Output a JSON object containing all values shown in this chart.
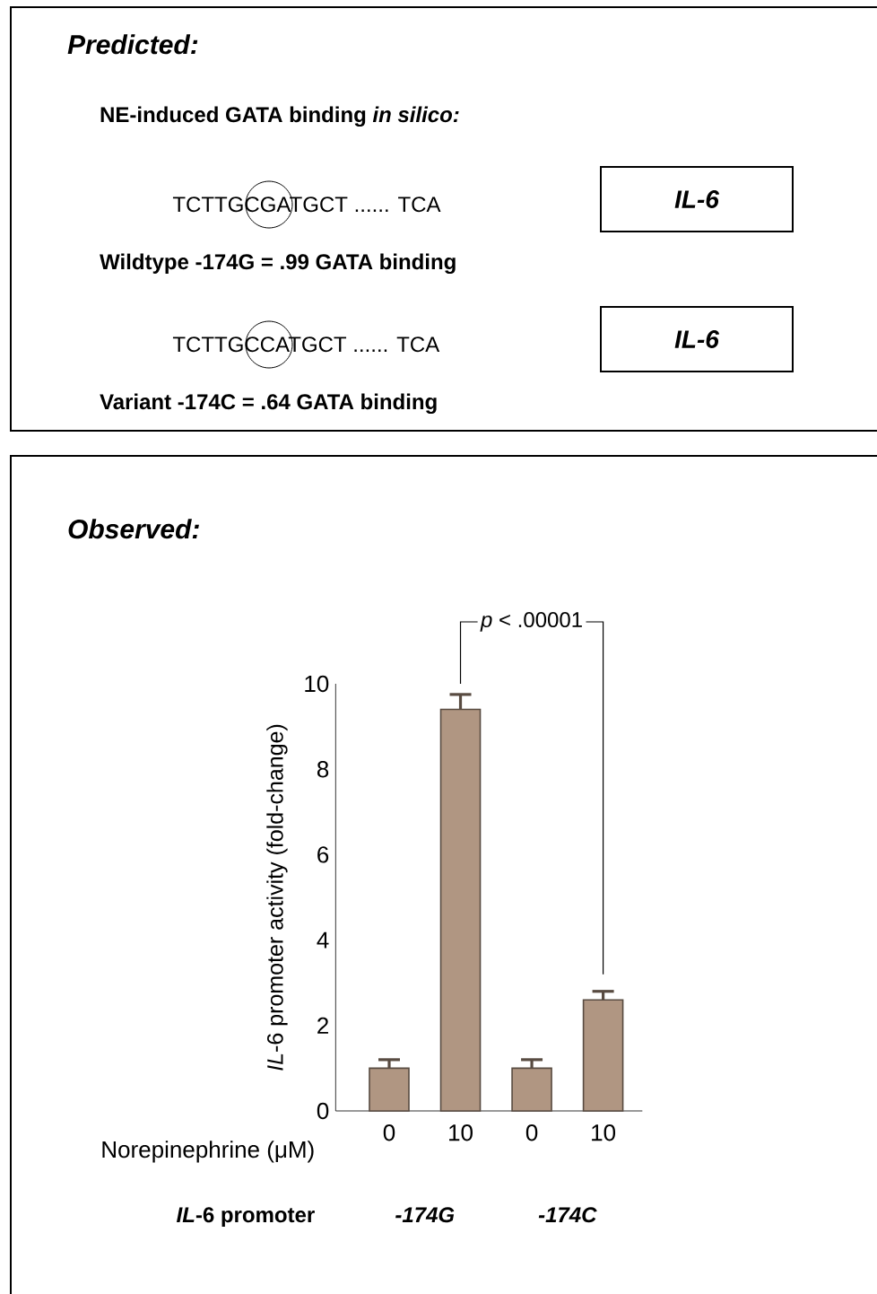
{
  "chart_data": [
    {
      "type": "other",
      "title": "Predicted:",
      "subtitle": "NE-induced GATA binding *in silico:*",
      "annotations": [
        "TCTTGCGATGCT ...... TCA",
        "IL-6",
        "Wildtype -174G = .99 GATA binding",
        "TCTTGCCATGCT ...... TCA",
        "IL-6",
        "Variant -174C = .64 GATA binding"
      ]
    },
    {
      "type": "bar",
      "title": "Observed:",
      "categories": [
        "0",
        "10",
        "0",
        "10"
      ],
      "values": [
        1.0,
        9.4,
        1.0,
        2.6
      ],
      "errors": [
        0.2,
        0.35,
        0.2,
        0.2
      ],
      "color": "#b09682",
      "ylim": [
        0,
        10
      ],
      "yticks": [
        0,
        2,
        4,
        6,
        8,
        10
      ],
      "ylabel": "*IL*-6 promoter activity (fold-change)",
      "xlabel": "Norepinephrine (μM)",
      "annotations": [
        "*IL*-6 promoter",
        "-174G",
        "-174C",
        "*p* < .00001"
      ]
    }
  ]
}
